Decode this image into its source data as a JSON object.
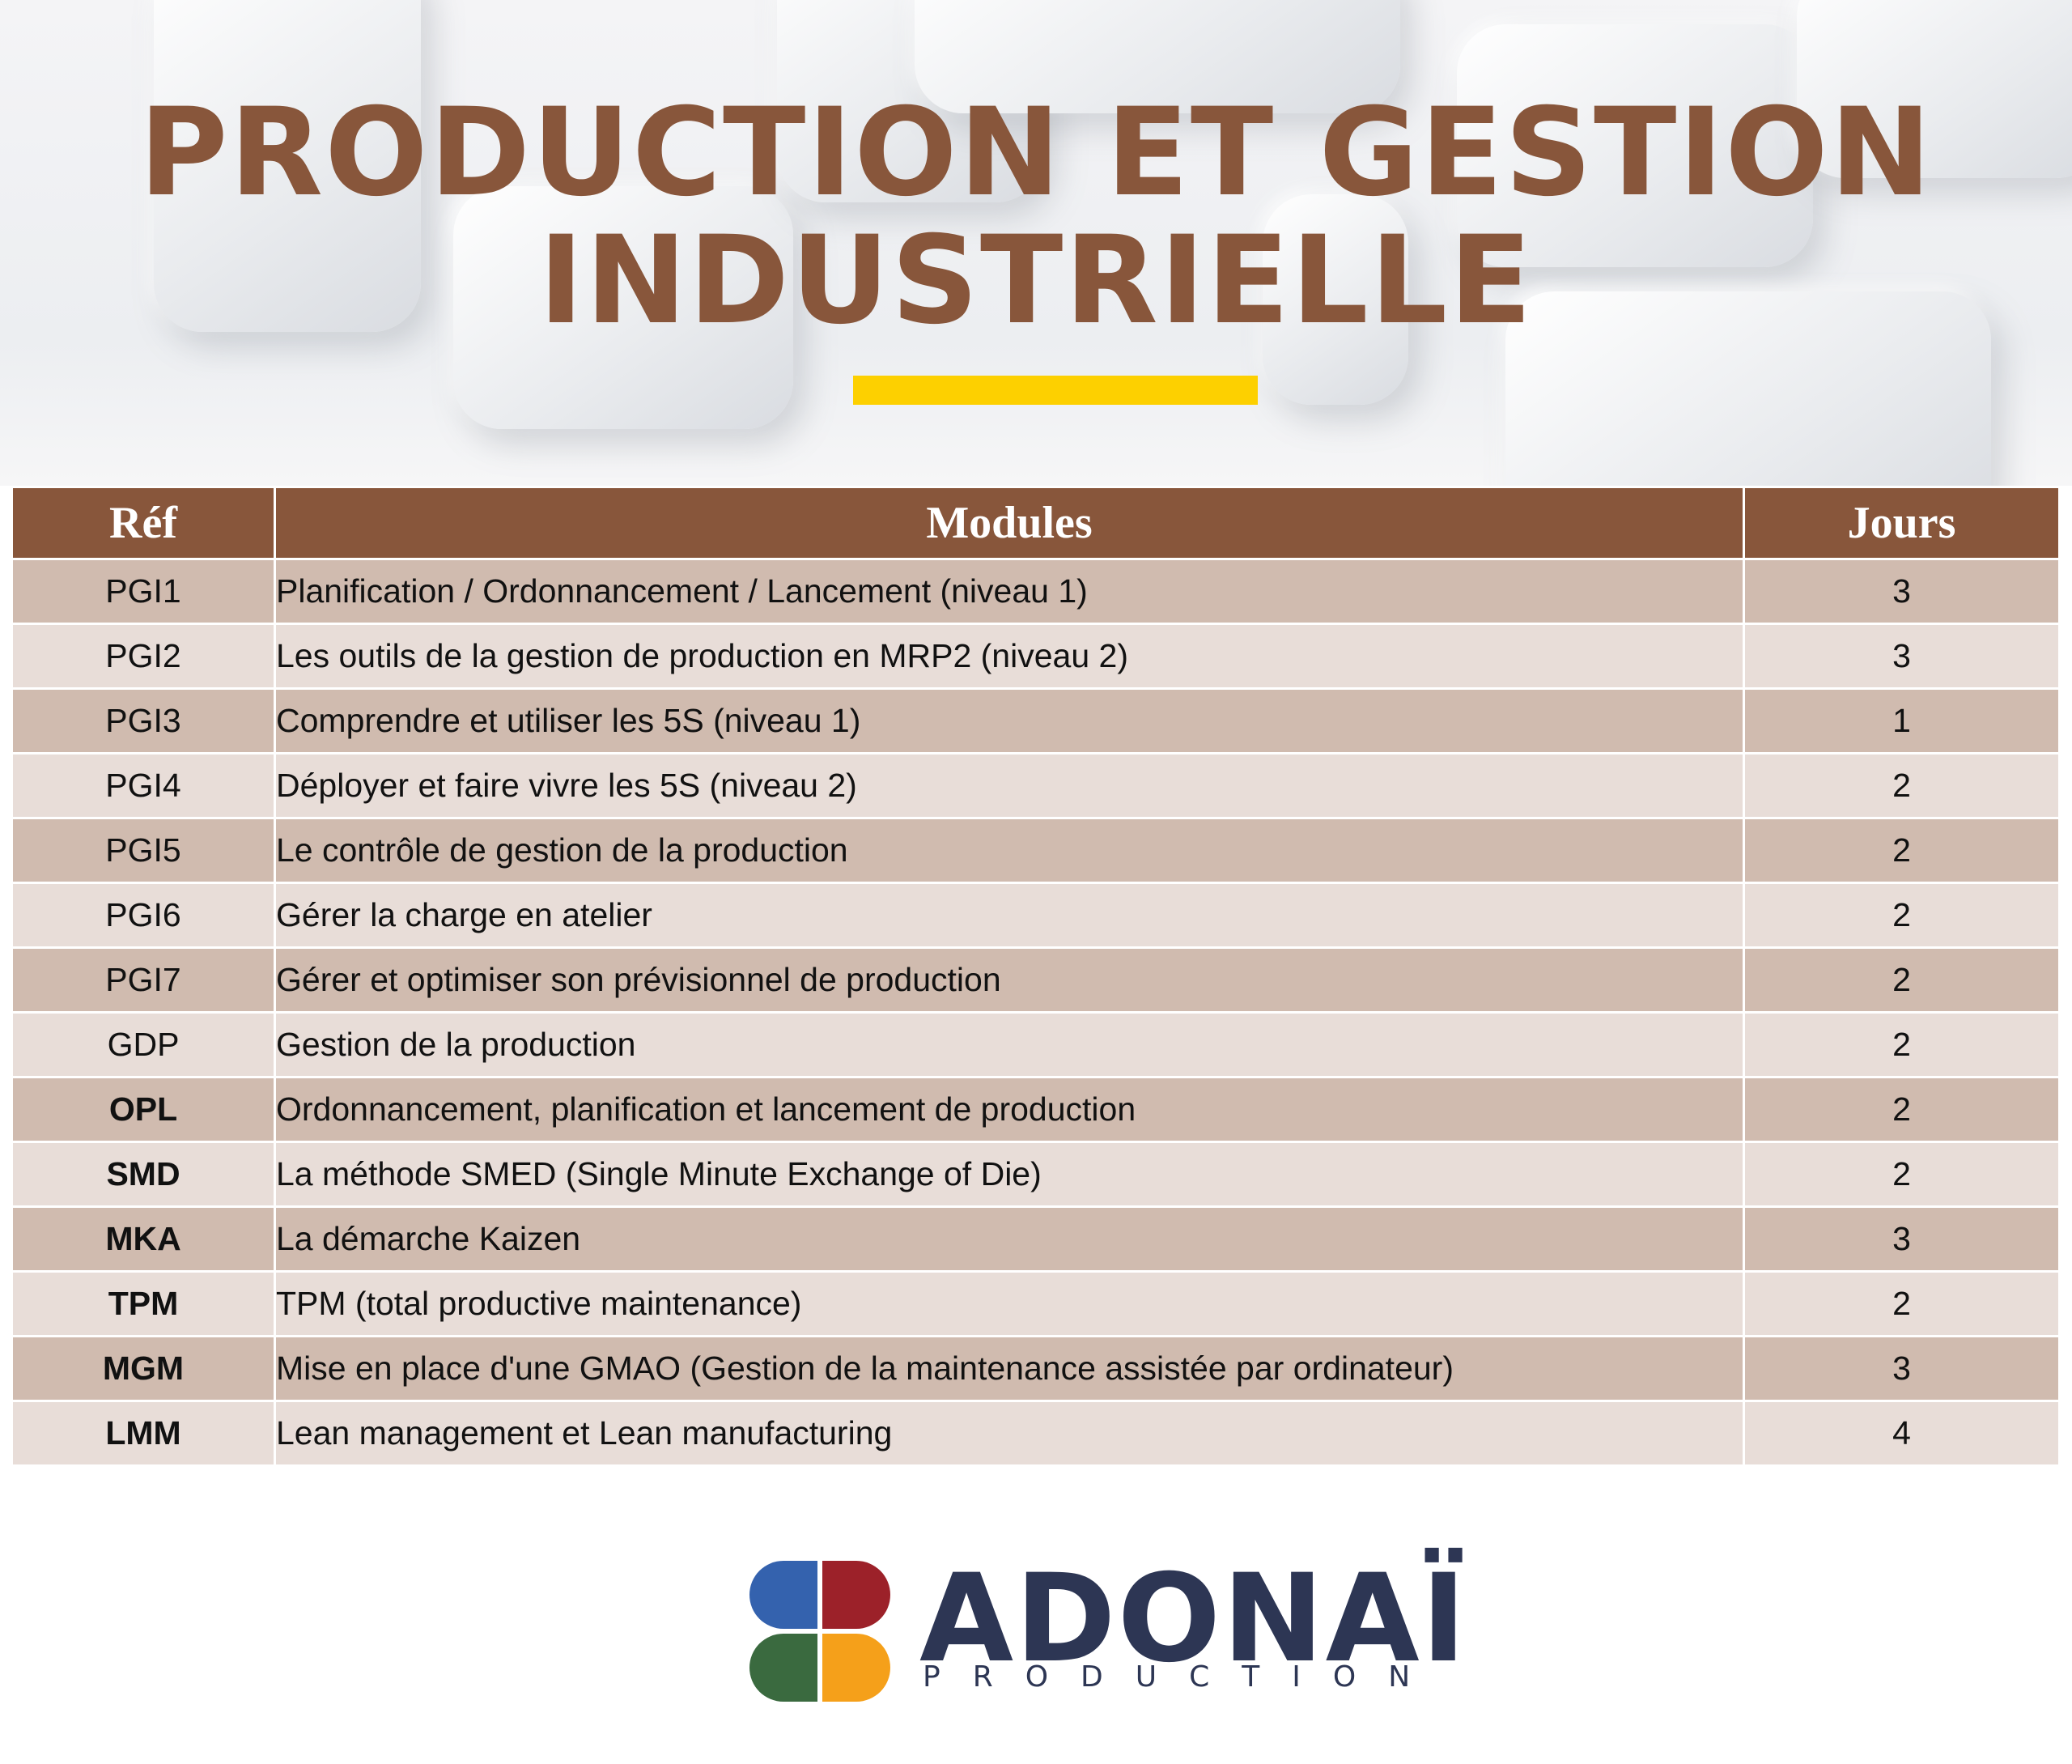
{
  "header": {
    "title_line1": "PRODUCTION ET GESTION",
    "title_line2": "INDUSTRIELLE",
    "accent_color": "#88563b",
    "underline_color": "#fdd000"
  },
  "table": {
    "headers": {
      "ref": "Réf",
      "modules": "Modules",
      "days": "Jours"
    },
    "rows": [
      {
        "ref": "PGI1",
        "module": "Planification / Ordonnancement / Lancement (niveau 1)",
        "days": "3"
      },
      {
        "ref": "PGI2",
        "module": "Les outils de la gestion de production en MRP2 (niveau 2)",
        "days": "3"
      },
      {
        "ref": "PGI3",
        "module": "Comprendre et utiliser les 5S (niveau 1)",
        "days": "1"
      },
      {
        "ref": "PGI4",
        "module": "Déployer et faire vivre les 5S (niveau 2)",
        "days": "2"
      },
      {
        "ref": "PGI5",
        "module": "Le contrôle de gestion de la production",
        "days": "2"
      },
      {
        "ref": "PGI6",
        "module": "Gérer la charge en atelier",
        "days": "2"
      },
      {
        "ref": "PGI7",
        "module": "Gérer et optimiser son prévisionnel de production",
        "days": "2"
      },
      {
        "ref": "GDP",
        "module": "Gestion de la production",
        "days": "2"
      },
      {
        "ref": "OPL",
        "module": "Ordonnancement, planification et lancement de production",
        "days": "2"
      },
      {
        "ref": "SMD",
        "module": "La méthode SMED (Single Minute Exchange of Die)",
        "days": "2"
      },
      {
        "ref": "MKA",
        "module": "La démarche Kaizen",
        "days": "3"
      },
      {
        "ref": "TPM",
        "module": "TPM (total productive maintenance)",
        "days": "2"
      },
      {
        "ref": "MGM",
        "module": "Mise en place d'une GMAO (Gestion de la maintenance assistée par ordinateur)",
        "days": "3"
      },
      {
        "ref": "LMM",
        "module": "Lean management et Lean manufacturing",
        "days": "4"
      }
    ]
  },
  "logo": {
    "name": "ADONAÏ",
    "tagline": "PRODUCTION",
    "colors": [
      "#3462ae",
      "#9c2129",
      "#3a6a3f",
      "#f5a01a",
      "#2d3654"
    ]
  }
}
